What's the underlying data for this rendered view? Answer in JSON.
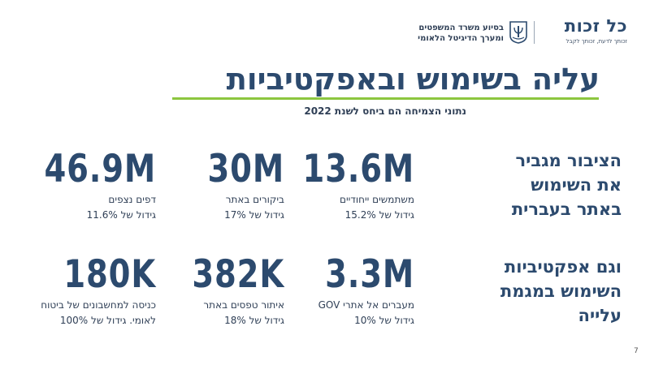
{
  "header": {
    "logo_name": "כל זכות",
    "logo_tagline": "זכותך לדעת, זכותך לקבל",
    "ministry_line1": "בסיוע משרד המשפטים",
    "ministry_line2": "ומערך הדיגיטל הלאומי"
  },
  "title": "עליה בשימוש ובאפקטיביות",
  "subtitle": "נתוני הצמיחה הם ביחס לשנת 2022",
  "side_headings": {
    "usage": [
      "הציבור מגביר",
      "את השימוש",
      "באתר בעברית"
    ],
    "effectiveness": [
      "וגם אפקטיביות",
      "השימוש במגמת",
      "עלייה"
    ]
  },
  "stats": {
    "row1": [
      {
        "value": "13.6M",
        "label": "משתמשים ייחודיים",
        "growth": "גידול של 15.2%"
      },
      {
        "value": "30M",
        "label": "ביקורים באתר",
        "growth": "גידול של 17%"
      },
      {
        "value": "46.9M",
        "label": "דפים נצפים",
        "growth": "גידול של 11.6%"
      }
    ],
    "row2": [
      {
        "value": "3.3M",
        "label": "מעברים אל אתרי GOV",
        "growth": "גידול של 10%"
      },
      {
        "value": "382K",
        "label": "איתור טפסים באתר",
        "growth": "גידול של 18%"
      },
      {
        "value": "180K",
        "label": "כניסה למחשבונים של ביטוח",
        "growth": "לאומי. גידול של 100%"
      }
    ]
  },
  "page_number": "7",
  "colors": {
    "primary": "#2c4a6e",
    "accent": "#8cc63f",
    "text": "#2f3f56"
  }
}
